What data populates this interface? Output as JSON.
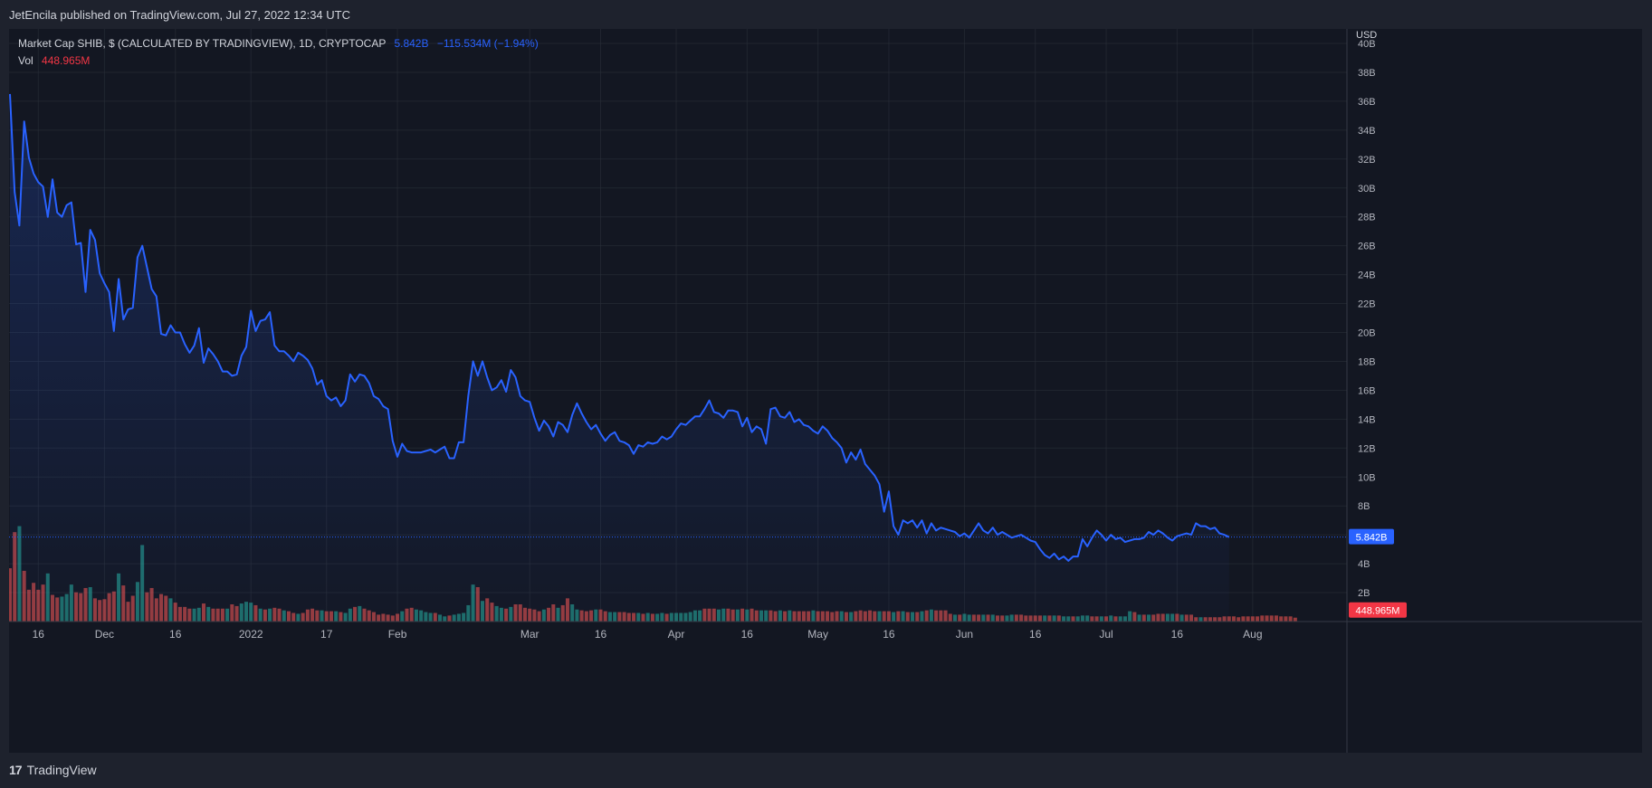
{
  "header": {
    "published_text": "JetEncila published on TradingView.com, Jul 27, 2022 12:34 UTC"
  },
  "legend": {
    "symbol": "Market Cap SHIB, $ (CALCULATED BY TRADINGVIEW), 1D, CRYPTOCAP",
    "last_value": "5.842B",
    "change": "−115.534M (−1.94%)",
    "vol_label": "Vol",
    "vol_value": "448.965M"
  },
  "footer": {
    "brand_logo": "17",
    "brand_name": "TradingView"
  },
  "colors": {
    "line": "#2962ff",
    "up_volume": "#26a69a",
    "down_volume": "#ef5350",
    "background": "#131722",
    "grid": "#2a2e39"
  },
  "chart_data": {
    "type": "line",
    "currency_label": "USD",
    "ylim": [
      0,
      42
    ],
    "y_unit": "B",
    "yticks": [
      2,
      4,
      6,
      8,
      10,
      12,
      14,
      16,
      18,
      20,
      22,
      24,
      26,
      28,
      30,
      32,
      34,
      36,
      38,
      40
    ],
    "xticks": [
      {
        "label": "16",
        "day": 6
      },
      {
        "label": "Dec",
        "day": 20
      },
      {
        "label": "16",
        "day": 35
      },
      {
        "label": "2022",
        "day": 51
      },
      {
        "label": "17",
        "day": 67
      },
      {
        "label": "Feb",
        "day": 82
      },
      {
        "label": "Mar",
        "day": 110
      },
      {
        "label": "16",
        "day": 125
      },
      {
        "label": "Apr",
        "day": 141
      },
      {
        "label": "16",
        "day": 156
      },
      {
        "label": "May",
        "day": 171
      },
      {
        "label": "16",
        "day": 186
      },
      {
        "label": "Jun",
        "day": 202
      },
      {
        "label": "16",
        "day": 217
      },
      {
        "label": "Jul",
        "day": 232
      },
      {
        "label": "16",
        "day": 247
      },
      {
        "label": "Aug",
        "day": 263
      }
    ],
    "x_range_days": [
      0,
      275
    ],
    "series": [
      {
        "name": "Market Cap SHIB",
        "start_day": 0,
        "values": [
          36.5,
          29.7,
          27.4,
          34.6,
          32.1,
          31.0,
          30.4,
          30.1,
          28.0,
          30.6,
          28.3,
          28.0,
          28.8,
          29.0,
          26.1,
          26.2,
          22.8,
          27.1,
          26.4,
          24.1,
          23.4,
          22.8,
          20.1,
          23.7,
          20.9,
          21.6,
          21.7,
          25.2,
          26.0,
          24.5,
          23.0,
          22.5,
          19.9,
          19.8,
          20.5,
          20.0,
          20.0,
          19.2,
          18.6,
          19.1,
          20.3,
          17.9,
          18.9,
          18.5,
          18.0,
          17.3,
          17.3,
          17.0,
          17.1,
          18.4,
          19.0,
          21.5,
          20.1,
          20.8,
          20.9,
          21.4,
          19.1,
          18.7,
          18.7,
          18.4,
          18.0,
          18.6,
          18.4,
          18.1,
          17.5,
          16.4,
          16.7,
          15.6,
          15.3,
          15.5,
          14.9,
          15.3,
          17.1,
          16.6,
          17.1,
          17.0,
          16.5,
          15.6,
          15.4,
          14.9,
          14.7,
          12.5,
          11.4,
          12.3,
          11.8,
          11.7,
          11.7,
          11.7,
          11.8,
          11.9,
          11.7,
          11.9,
          12.1,
          11.3,
          11.3,
          12.4,
          12.4,
          15.6,
          18.0,
          17.0,
          18.0,
          16.9,
          16.0,
          16.2,
          16.7,
          15.9,
          17.4,
          16.9,
          15.6,
          15.3,
          15.2,
          14.1,
          13.2,
          13.9,
          13.5,
          12.8,
          13.8,
          13.6,
          13.1,
          14.3,
          15.1,
          14.4,
          13.8,
          13.3,
          13.6,
          13.0,
          12.5,
          12.9,
          13.1,
          12.5,
          12.4,
          12.2,
          11.6,
          12.2,
          12.1,
          12.4,
          12.3,
          12.4,
          12.8,
          12.6,
          12.8,
          13.3,
          13.7,
          13.6,
          13.9,
          14.2,
          14.2,
          14.7,
          15.3,
          14.5,
          14.4,
          14.1,
          14.6,
          14.6,
          14.5,
          13.5,
          14.1,
          13.1,
          13.5,
          13.3,
          12.3,
          14.7,
          14.8,
          14.2,
          14.1,
          14.5,
          13.8,
          14.0,
          13.6,
          13.5,
          13.2,
          13.0,
          13.5,
          13.2,
          12.7,
          12.4,
          12.0,
          11.0,
          11.7,
          11.2,
          11.9,
          10.9,
          10.5,
          10.1,
          9.5,
          7.6,
          9.0,
          6.6,
          6.0,
          7.0,
          6.8,
          7.0,
          6.5,
          7.0,
          6.1,
          6.8,
          6.3,
          6.5,
          6.4,
          6.3,
          6.2,
          5.9,
          6.1,
          5.8,
          6.3,
          6.8,
          6.3,
          6.1,
          6.5,
          6.0,
          6.2,
          6.0,
          5.8,
          5.9,
          6.0,
          5.8,
          5.6,
          5.5,
          5.0,
          4.6,
          4.4,
          4.7,
          4.3,
          4.5,
          4.2,
          4.5,
          4.5,
          5.7,
          5.2,
          5.8,
          6.3,
          6.0,
          5.6,
          6.0,
          5.7,
          5.8,
          5.5,
          5.6,
          5.7,
          5.7,
          5.8,
          6.2,
          6.0,
          6.3,
          6.1,
          5.8,
          5.6,
          5.9,
          6.0,
          6.1,
          6.0,
          6.8,
          6.6,
          6.6,
          6.4,
          6.5,
          6.1,
          6.0,
          5.84
        ]
      },
      {
        "name": "Vol",
        "start_day": 0,
        "scale_max": 20,
        "values": [
          6.2,
          10.4,
          11.1,
          5.9,
          3.7,
          4.5,
          3.7,
          4.3,
          5.6,
          3.1,
          2.8,
          2.9,
          3.2,
          4.3,
          3.4,
          3.3,
          3.9,
          4.0,
          2.7,
          2.5,
          2.6,
          3.3,
          3.5,
          5.6,
          4.2,
          2.3,
          3.0,
          4.6,
          8.9,
          3.4,
          3.9,
          2.7,
          3.2,
          3.0,
          2.7,
          2.2,
          1.7,
          1.7,
          1.5,
          1.5,
          1.6,
          2.1,
          1.7,
          1.5,
          1.5,
          1.5,
          1.5,
          2.0,
          1.8,
          2.1,
          2.3,
          2.2,
          1.9,
          1.5,
          1.4,
          1.5,
          1.6,
          1.5,
          1.3,
          1.2,
          1.0,
          0.9,
          1.0,
          1.4,
          1.5,
          1.3,
          1.3,
          1.2,
          1.2,
          1.2,
          1.1,
          1.0,
          1.5,
          1.7,
          1.8,
          1.5,
          1.3,
          1.1,
          0.8,
          0.9,
          0.8,
          0.7,
          0.9,
          1.2,
          1.5,
          1.6,
          1.4,
          1.3,
          1.1,
          1.0,
          1.0,
          0.8,
          0.6,
          0.7,
          0.8,
          0.9,
          1.0,
          1.9,
          4.3,
          4.0,
          2.4,
          2.7,
          2.2,
          1.8,
          1.6,
          1.5,
          1.7,
          2.0,
          2.0,
          1.6,
          1.5,
          1.4,
          1.2,
          1.4,
          1.6,
          2.0,
          1.6,
          1.9,
          2.7,
          2.0,
          1.4,
          1.3,
          1.2,
          1.3,
          1.4,
          1.4,
          1.2,
          1.1,
          1.1,
          1.1,
          1.1,
          1.0,
          1.0,
          1.0,
          0.9,
          1.0,
          0.9,
          0.9,
          1.0,
          0.9,
          1.0,
          1.0,
          1.0,
          1.0,
          1.1,
          1.3,
          1.3,
          1.5,
          1.5,
          1.5,
          1.4,
          1.5,
          1.5,
          1.4,
          1.4,
          1.5,
          1.4,
          1.5,
          1.3,
          1.3,
          1.3,
          1.3,
          1.2,
          1.3,
          1.2,
          1.3,
          1.2,
          1.2,
          1.2,
          1.2,
          1.3,
          1.2,
          1.2,
          1.2,
          1.1,
          1.2,
          1.2,
          1.1,
          1.1,
          1.2,
          1.3,
          1.2,
          1.3,
          1.2,
          1.2,
          1.2,
          1.2,
          1.1,
          1.2,
          1.2,
          1.1,
          1.1,
          1.1,
          1.2,
          1.3,
          1.4,
          1.3,
          1.3,
          1.3,
          0.9,
          0.8,
          0.8,
          0.9,
          0.8,
          0.8,
          0.8,
          0.8,
          0.8,
          0.8,
          0.7,
          0.7,
          0.7,
          0.8,
          0.8,
          0.8,
          0.7,
          0.7,
          0.7,
          0.7,
          0.7,
          0.7,
          0.7,
          0.7,
          0.6,
          0.6,
          0.6,
          0.6,
          0.7,
          0.7,
          0.6,
          0.6,
          0.6,
          0.6,
          0.7,
          0.6,
          0.6,
          0.6,
          1.2,
          1.1,
          0.8,
          0.8,
          0.8,
          0.8,
          0.9,
          0.9,
          0.9,
          0.9,
          0.9,
          0.8,
          0.8,
          0.8,
          0.5,
          0.5,
          0.5,
          0.5,
          0.5,
          0.5,
          0.6,
          0.6,
          0.6,
          0.5,
          0.6,
          0.6,
          0.6,
          0.6,
          0.7,
          0.7,
          0.7,
          0.7,
          0.6,
          0.6,
          0.6,
          0.45
        ],
        "directions": [
          "d",
          "d",
          "u",
          "d",
          "d",
          "d",
          "d",
          "d",
          "u",
          "d",
          "d",
          "u",
          "u",
          "u",
          "d",
          "d",
          "d",
          "u",
          "d",
          "d",
          "d",
          "d",
          "d",
          "u",
          "d",
          "d",
          "d",
          "u",
          "u",
          "d",
          "d",
          "d",
          "d",
          "d",
          "u",
          "d",
          "d",
          "d",
          "d",
          "u",
          "u",
          "d",
          "u",
          "d",
          "d",
          "d",
          "u",
          "d",
          "d",
          "u",
          "u",
          "u",
          "d",
          "u",
          "d",
          "u",
          "d",
          "d",
          "u",
          "d",
          "d",
          "u",
          "d",
          "d",
          "d",
          "d",
          "u",
          "d",
          "d",
          "u",
          "d",
          "u",
          "u",
          "d",
          "u",
          "d",
          "d",
          "d",
          "d",
          "d",
          "d",
          "d",
          "d",
          "u",
          "d",
          "d",
          "u",
          "u",
          "u",
          "u",
          "d",
          "u",
          "u",
          "d",
          "u",
          "u",
          "u",
          "u",
          "u",
          "d",
          "u",
          "d",
          "d",
          "u",
          "u",
          "d",
          "u",
          "d",
          "d",
          "d",
          "d",
          "d",
          "d",
          "u",
          "d",
          "d",
          "u",
          "d",
          "d",
          "u",
          "u",
          "d",
          "d",
          "d",
          "u",
          "d",
          "d",
          "u",
          "u",
          "d",
          "d",
          "d",
          "d",
          "u",
          "d",
          "u",
          "d",
          "u",
          "u",
          "d",
          "u",
          "u",
          "u",
          "u",
          "u",
          "u",
          "u",
          "d",
          "d",
          "d",
          "u",
          "u",
          "d",
          "d",
          "u",
          "d",
          "u",
          "d",
          "d",
          "u",
          "u",
          "d",
          "d",
          "u",
          "d",
          "u",
          "d",
          "d",
          "d",
          "d",
          "u",
          "d",
          "d",
          "d",
          "d",
          "d",
          "u",
          "d",
          "u",
          "d",
          "d",
          "d",
          "d",
          "d",
          "u",
          "d",
          "d",
          "u",
          "d",
          "u",
          "d",
          "u",
          "d",
          "u",
          "d",
          "u",
          "d",
          "d",
          "d",
          "d",
          "u",
          "d",
          "u",
          "u",
          "d",
          "d",
          "u",
          "d",
          "u",
          "d",
          "d",
          "u",
          "u",
          "d",
          "d",
          "d",
          "d",
          "d",
          "d",
          "u",
          "d",
          "u",
          "d",
          "u",
          "u",
          "d",
          "u",
          "u",
          "u",
          "d",
          "d",
          "u",
          "d",
          "u",
          "d",
          "u",
          "u",
          "u",
          "d",
          "u",
          "d",
          "u",
          "d",
          "d",
          "d",
          "u",
          "u",
          "d",
          "u",
          "d",
          "d",
          "d",
          "u",
          "d",
          "d",
          "d",
          "d",
          "d"
        ]
      }
    ],
    "price_badge": {
      "label": "5.842B",
      "value": 5.842
    },
    "volume_badge": {
      "label": "448.965M",
      "value": 0.449
    }
  }
}
